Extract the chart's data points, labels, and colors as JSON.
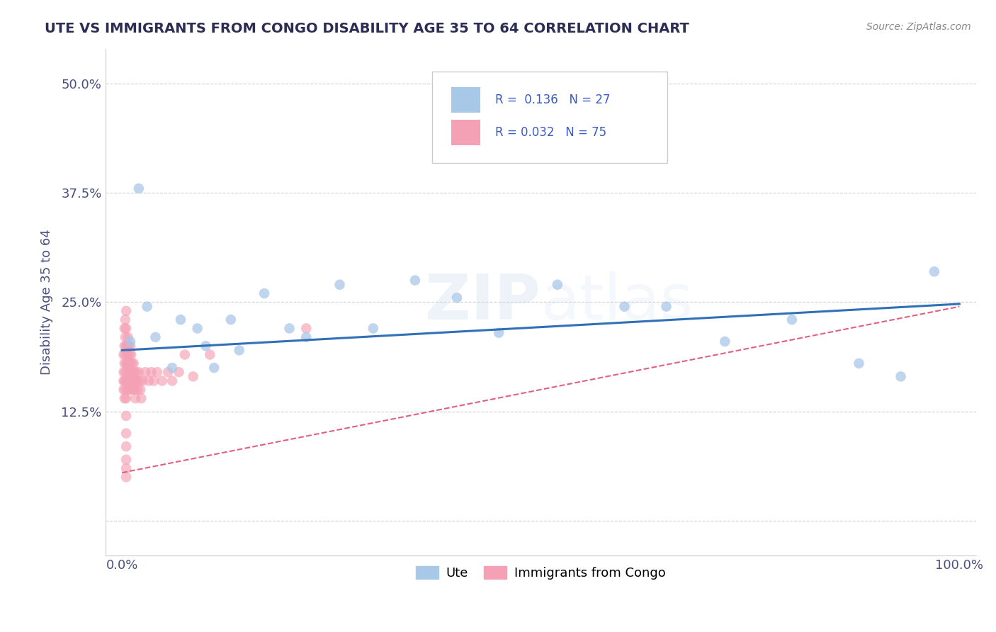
{
  "title": "UTE VS IMMIGRANTS FROM CONGO DISABILITY AGE 35 TO 64 CORRELATION CHART",
  "source": "Source: ZipAtlas.com",
  "ylabel": "Disability Age 35 to 64",
  "xlabel": "",
  "R_ute": 0.136,
  "N_ute": 27,
  "R_congo": 0.032,
  "N_congo": 75,
  "xlim": [
    -0.02,
    1.02
  ],
  "ylim": [
    -0.04,
    0.54
  ],
  "yticks": [
    0.0,
    0.125,
    0.25,
    0.375,
    0.5
  ],
  "ytick_labels": [
    "",
    "12.5%",
    "25.0%",
    "37.5%",
    "50.0%"
  ],
  "xticks": [
    0.0,
    0.25,
    0.5,
    0.75,
    1.0
  ],
  "xtick_labels": [
    "0.0%",
    "",
    "",
    "",
    "100.0%"
  ],
  "blue_color": "#a8c8e8",
  "pink_color": "#f4a0b5",
  "blue_line_color": "#3070b8",
  "pink_line_color": "#e06080",
  "watermark": "ZIPatlas",
  "ute_x": [
    0.01,
    0.02,
    0.03,
    0.04,
    0.06,
    0.07,
    0.09,
    0.1,
    0.11,
    0.13,
    0.14,
    0.17,
    0.2,
    0.22,
    0.26,
    0.3,
    0.35,
    0.4,
    0.45,
    0.52,
    0.6,
    0.65,
    0.72,
    0.8,
    0.88,
    0.93,
    0.97
  ],
  "ute_y": [
    0.205,
    0.38,
    0.245,
    0.21,
    0.175,
    0.23,
    0.22,
    0.2,
    0.175,
    0.23,
    0.195,
    0.26,
    0.22,
    0.21,
    0.27,
    0.22,
    0.275,
    0.255,
    0.215,
    0.27,
    0.245,
    0.245,
    0.205,
    0.23,
    0.18,
    0.165,
    0.285
  ],
  "congo_x": [
    0.002,
    0.002,
    0.002,
    0.002,
    0.003,
    0.003,
    0.003,
    0.003,
    0.003,
    0.004,
    0.004,
    0.004,
    0.004,
    0.004,
    0.005,
    0.005,
    0.005,
    0.005,
    0.005,
    0.005,
    0.005,
    0.005,
    0.005,
    0.005,
    0.005,
    0.005,
    0.006,
    0.006,
    0.006,
    0.007,
    0.007,
    0.007,
    0.007,
    0.008,
    0.008,
    0.008,
    0.009,
    0.009,
    0.009,
    0.01,
    0.01,
    0.01,
    0.011,
    0.011,
    0.012,
    0.012,
    0.013,
    0.013,
    0.014,
    0.014,
    0.015,
    0.015,
    0.016,
    0.016,
    0.017,
    0.018,
    0.019,
    0.02,
    0.021,
    0.022,
    0.023,
    0.025,
    0.028,
    0.032,
    0.035,
    0.038,
    0.042,
    0.048,
    0.055,
    0.06,
    0.068,
    0.075,
    0.085,
    0.105,
    0.22
  ],
  "congo_y": [
    0.19,
    0.17,
    0.16,
    0.15,
    0.22,
    0.2,
    0.18,
    0.16,
    0.14,
    0.23,
    0.21,
    0.19,
    0.17,
    0.15,
    0.24,
    0.22,
    0.2,
    0.18,
    0.16,
    0.14,
    0.12,
    0.1,
    0.085,
    0.07,
    0.06,
    0.05,
    0.2,
    0.18,
    0.16,
    0.21,
    0.19,
    0.17,
    0.15,
    0.2,
    0.18,
    0.16,
    0.19,
    0.17,
    0.15,
    0.2,
    0.18,
    0.16,
    0.19,
    0.17,
    0.18,
    0.16,
    0.17,
    0.15,
    0.18,
    0.16,
    0.17,
    0.15,
    0.16,
    0.14,
    0.17,
    0.16,
    0.15,
    0.17,
    0.16,
    0.15,
    0.14,
    0.16,
    0.17,
    0.16,
    0.17,
    0.16,
    0.17,
    0.16,
    0.17,
    0.16,
    0.17,
    0.19,
    0.165,
    0.19,
    0.22
  ],
  "blue_trend_x0": 0.0,
  "blue_trend_y0": 0.195,
  "blue_trend_x1": 1.0,
  "blue_trend_y1": 0.248,
  "pink_trend_x0": 0.0,
  "pink_trend_y0": 0.055,
  "pink_trend_x1": 1.0,
  "pink_trend_y1": 0.245
}
